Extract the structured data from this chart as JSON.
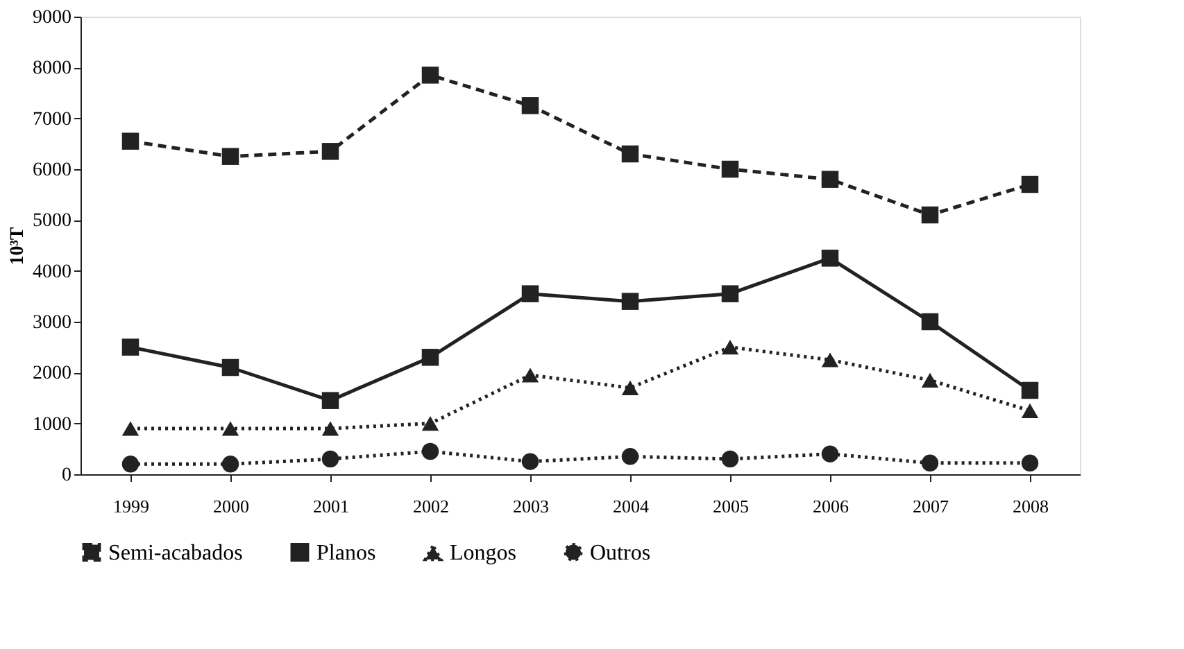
{
  "chart_data": {
    "type": "line",
    "ylabel": "10³T",
    "categories": [
      "1999",
      "2000",
      "2001",
      "2002",
      "2003",
      "2004",
      "2005",
      "2006",
      "2007",
      "2008"
    ],
    "series": [
      {
        "name": "Semi-acabados",
        "color": "#222222",
        "line_style": "dashed",
        "marker": "square",
        "values": [
          6550,
          6250,
          6350,
          7850,
          7250,
          6300,
          6000,
          5800,
          5100,
          5700
        ]
      },
      {
        "name": "Planos",
        "color": "#222222",
        "line_style": "solid",
        "marker": "square",
        "values": [
          2500,
          2100,
          1450,
          2300,
          3550,
          3400,
          3550,
          4250,
          3000,
          1650
        ]
      },
      {
        "name": "Longos",
        "color": "#222222",
        "line_style": "dotted",
        "marker": "triangle",
        "values": [
          900,
          900,
          900,
          1000,
          1950,
          1700,
          2500,
          2250,
          1850,
          1250
        ]
      },
      {
        "name": "Outros",
        "color": "#222222",
        "line_style": "dotted",
        "marker": "circle",
        "values": [
          200,
          200,
          300,
          450,
          250,
          350,
          300,
          400,
          220,
          220
        ]
      }
    ],
    "ylim": [
      0,
      9000
    ],
    "yticks": [
      0,
      1000,
      2000,
      3000,
      4000,
      5000,
      6000,
      7000,
      8000,
      9000
    ],
    "grid": false,
    "legend": "bottom"
  }
}
